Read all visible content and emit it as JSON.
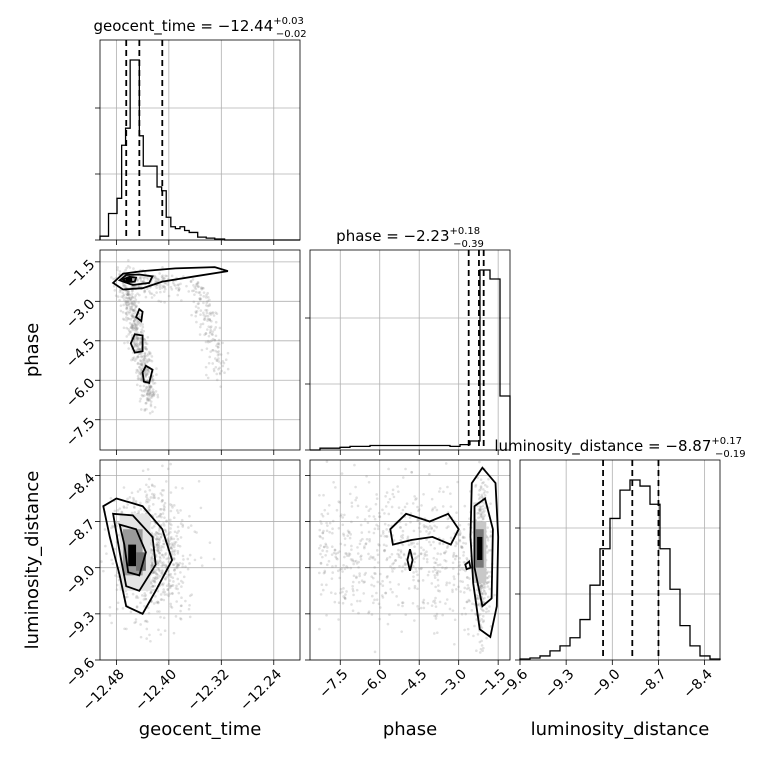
{
  "chart_data": {
    "type": "corner",
    "parameters": [
      "geocent_time",
      "phase",
      "luminosity_distance"
    ],
    "titles": [
      {
        "label": "geocent_time",
        "value": "−12.44",
        "plus": "+0.03",
        "minus": "−0.02"
      },
      {
        "label": "phase",
        "value": "−2.23",
        "plus": "+0.18",
        "minus": "−0.39"
      },
      {
        "label": "luminosity_distance",
        "value": "−8.87",
        "plus": "+0.17",
        "minus": "−0.19"
      }
    ],
    "ranges": {
      "geocent_time": [
        -12.505,
        -12.2
      ],
      "phase": [
        -8.65,
        -1.05
      ],
      "luminosity_distance": [
        -9.6,
        -8.3
      ]
    },
    "ticks": {
      "geocent_time": {
        "values": [
          -12.48,
          -12.4,
          -12.32,
          -12.24
        ],
        "labels": [
          "−12.48",
          "−12.40",
          "−12.32",
          "−12.24"
        ]
      },
      "phase": {
        "values": [
          -7.5,
          -6.0,
          -4.5,
          -3.0,
          -1.5
        ],
        "labels": [
          "−7.5",
          "−6.0",
          "−4.5",
          "−3.0",
          "−1.5"
        ]
      },
      "luminosity_distance": {
        "values": [
          -9.6,
          -9.3,
          -9.0,
          -8.7,
          -8.4
        ],
        "labels": [
          "−9.6",
          "−9.3",
          "−9.0",
          "−8.7",
          "−8.4"
        ]
      }
    },
    "histograms": {
      "geocent_time": {
        "quantiles": [
          -12.465,
          -12.445,
          -12.41
        ],
        "bins_edges": [
          -12.505,
          -12.492,
          -12.479,
          -12.472,
          -12.466,
          -12.459,
          -12.452,
          -12.445,
          -12.439,
          -12.432,
          -12.425,
          -12.418,
          -12.411,
          -12.404,
          -12.397,
          -12.39,
          -12.383,
          -12.376,
          -12.369,
          -12.356,
          -12.343,
          -12.33,
          -12.315,
          -12.2
        ],
        "counts": [
          0.02,
          0.14,
          0.22,
          0.5,
          0.59,
          0.95,
          0.95,
          0.55,
          0.39,
          0.39,
          0.39,
          0.28,
          0.26,
          0.12,
          0.07,
          0.06,
          0.07,
          0.05,
          0.04,
          0.015,
          0.01,
          0.005,
          0.0
        ]
      },
      "phase": {
        "quantiles": [
          -2.62,
          -2.23,
          -2.05
        ],
        "bins_edges": [
          -8.65,
          -8.27,
          -7.89,
          -7.51,
          -7.13,
          -6.75,
          -6.37,
          -5.99,
          -5.61,
          -5.23,
          -4.85,
          -4.47,
          -4.09,
          -3.71,
          -3.33,
          -2.95,
          -2.57,
          -2.19,
          -1.81,
          -1.43,
          -1.05
        ],
        "counts": [
          0.0,
          0.01,
          0.01,
          0.015,
          0.02,
          0.02,
          0.025,
          0.025,
          0.025,
          0.025,
          0.025,
          0.025,
          0.025,
          0.025,
          0.02,
          0.03,
          0.05,
          1.0,
          0.95,
          0.3
        ]
      },
      "luminosity_distance": {
        "quantiles": [
          -9.06,
          -8.87,
          -8.7
        ],
        "bins_edges": [
          -9.6,
          -9.535,
          -9.47,
          -9.405,
          -9.34,
          -9.275,
          -9.21,
          -9.145,
          -9.08,
          -9.015,
          -8.95,
          -8.885,
          -8.82,
          -8.755,
          -8.69,
          -8.625,
          -8.56,
          -8.495,
          -8.43,
          -8.365,
          -8.3
        ],
        "counts": [
          0.005,
          0.01,
          0.02,
          0.045,
          0.07,
          0.11,
          0.2,
          0.37,
          0.55,
          0.7,
          0.84,
          0.89,
          0.86,
          0.77,
          0.55,
          0.35,
          0.17,
          0.07,
          0.02,
          0.005
        ]
      }
    },
    "pairs": [
      {
        "x": "geocent_time",
        "y": "phase"
      },
      {
        "x": "geocent_time",
        "y": "luminosity_distance"
      },
      {
        "x": "phase",
        "y": "luminosity_distance"
      }
    ],
    "xlabels": [
      "geocent_time",
      "phase",
      "luminosity_distance"
    ],
    "ylabels": [
      "",
      "phase",
      "luminosity_distance"
    ],
    "grid": true
  }
}
